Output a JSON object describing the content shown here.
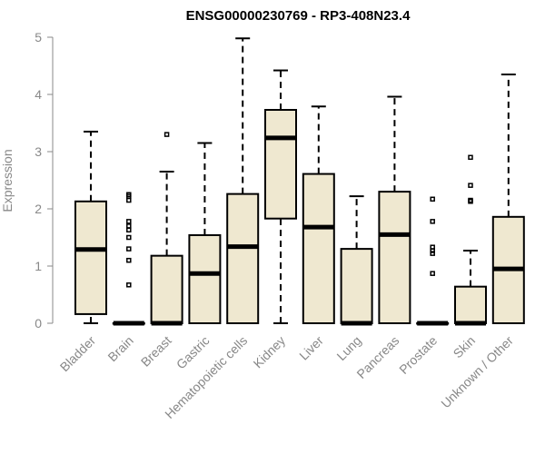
{
  "chart_data": {
    "type": "boxplot",
    "title": "ENSG00000230769 - RP3-408N23.4",
    "ylabel": "Expression",
    "xlabel": "",
    "ylim": [
      0,
      5
    ],
    "yticks": [
      0,
      1,
      2,
      3,
      4,
      5
    ],
    "box_color": "#efe8d0",
    "categories": [
      "Bladder",
      "Brain",
      "Breast",
      "Gastric",
      "Hematopoietic cells",
      "Kidney",
      "Liver",
      "Lung",
      "Pancreas",
      "Prostate",
      "Skin",
      "Unknown / Other"
    ],
    "boxes": [
      {
        "min": 0.0,
        "q1": 0.16,
        "median": 1.29,
        "q3": 2.13,
        "max": 3.35,
        "outliers": []
      },
      {
        "min": 0.0,
        "q1": 0.0,
        "median": 0.0,
        "q3": 0.0,
        "max": 0.0,
        "outliers": [
          0.67,
          1.1,
          1.3,
          1.5,
          1.63,
          1.7,
          1.78,
          2.15,
          2.22,
          2.25
        ]
      },
      {
        "min": 0.0,
        "q1": 0.0,
        "median": 0.0,
        "q3": 1.18,
        "max": 2.65,
        "outliers": [
          3.3
        ]
      },
      {
        "min": 0.0,
        "q1": 0.0,
        "median": 0.87,
        "q3": 1.54,
        "max": 3.15,
        "outliers": []
      },
      {
        "min": 0.0,
        "q1": 0.0,
        "median": 1.34,
        "q3": 2.26,
        "max": 4.98,
        "outliers": []
      },
      {
        "min": 0.0,
        "q1": 1.83,
        "median": 3.24,
        "q3": 3.73,
        "max": 4.42,
        "outliers": []
      },
      {
        "min": 0.0,
        "q1": 0.0,
        "median": 1.68,
        "q3": 2.61,
        "max": 3.79,
        "outliers": []
      },
      {
        "min": 0.0,
        "q1": 0.0,
        "median": 0.0,
        "q3": 1.3,
        "max": 2.22,
        "outliers": []
      },
      {
        "min": 0.0,
        "q1": 0.0,
        "median": 1.55,
        "q3": 2.3,
        "max": 3.96,
        "outliers": []
      },
      {
        "min": 0.0,
        "q1": 0.0,
        "median": 0.0,
        "q3": 0.0,
        "max": 0.0,
        "outliers": [
          0.87,
          1.22,
          1.27,
          1.33,
          1.78,
          2.17
        ]
      },
      {
        "min": 0.0,
        "q1": 0.0,
        "median": 0.0,
        "q3": 0.64,
        "max": 1.27,
        "outliers": [
          2.13,
          2.15,
          2.41,
          2.9
        ]
      },
      {
        "min": 0.0,
        "q1": 0.0,
        "median": 0.95,
        "q3": 1.86,
        "max": 4.35,
        "outliers": []
      }
    ]
  }
}
